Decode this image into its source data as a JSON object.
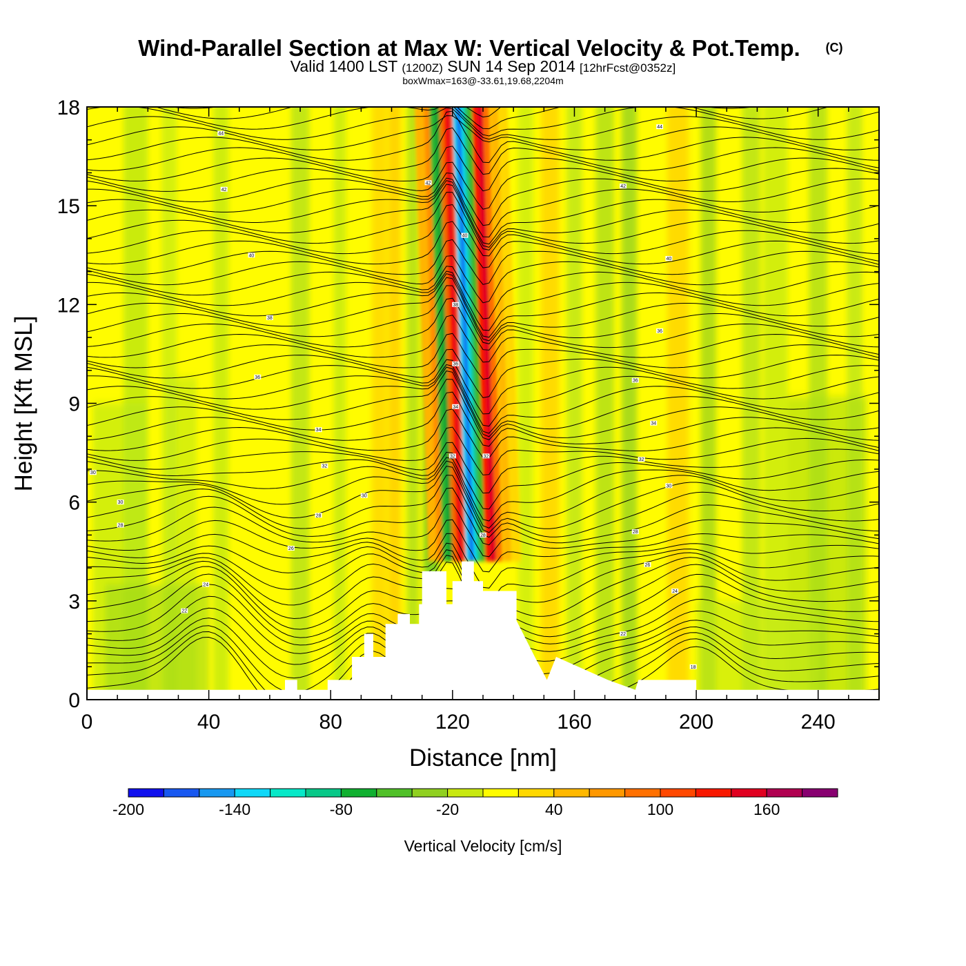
{
  "header": {
    "title": "Wind-Parallel Section at Max W: Vertical Velocity & Pot.Temp.",
    "title_mark": "(C)",
    "valid_prefix": "Valid 1400 LST",
    "valid_utc": "(1200Z)",
    "valid_date": "SUN 14 Sep 2014",
    "valid_fcst": "[12hrFcst@0352z]",
    "boxwmax": "boxWmax=163@-33.61,19.68,2204m"
  },
  "colorbar": {
    "title": "Vertical Velocity [cm/s]",
    "levels": [
      -200,
      -180,
      -160,
      -140,
      -120,
      -100,
      -80,
      -60,
      -40,
      -20,
      0,
      20,
      40,
      60,
      80,
      100,
      120,
      140,
      160,
      180,
      200
    ],
    "labels": [
      "-200",
      "-140",
      "-80",
      "-20",
      "40",
      "100",
      "160"
    ],
    "colors": [
      "#1010ee",
      "#1858f0",
      "#1898f0",
      "#10d8f8",
      "#08e8c8",
      "#08c888",
      "#10b030",
      "#50c028",
      "#90d020",
      "#c8e810",
      "#fffc00",
      "#ffd800",
      "#ffb800",
      "#ff9800",
      "#ff7000",
      "#ff4800",
      "#f81800",
      "#e00020",
      "#b00050",
      "#880070"
    ]
  },
  "chart_data": {
    "type": "heatmap",
    "title": "Wind-Parallel Section at Max W: Vertical Velocity & Pot.Temp.",
    "xlabel": "Distance [nm]",
    "ylabel": "Height [Kft MSL]",
    "xlim": [
      0,
      260
    ],
    "ylim": [
      0,
      18
    ],
    "xticks": [
      "0",
      "40",
      "80",
      "120",
      "160",
      "200",
      "240"
    ],
    "xtick_values": [
      0,
      40,
      80,
      120,
      160,
      200,
      240
    ],
    "yticks": [
      "0",
      "3",
      "6",
      "9",
      "12",
      "15",
      "18"
    ],
    "ytick_values": [
      0,
      3,
      6,
      9,
      12,
      15,
      18
    ],
    "updraft_core": {
      "x": 124,
      "w_max": 163
    },
    "terrain": [
      [
        0,
        0.3
      ],
      [
        65,
        0.3
      ],
      [
        65,
        0.6
      ],
      [
        69,
        0.6
      ],
      [
        69,
        0.3
      ],
      [
        79,
        0.3
      ],
      [
        79,
        0.6
      ],
      [
        87,
        0.6
      ],
      [
        87,
        1.3
      ],
      [
        91,
        1.3
      ],
      [
        91,
        2.0
      ],
      [
        94,
        2.0
      ],
      [
        94,
        1.3
      ],
      [
        98,
        1.3
      ],
      [
        98,
        2.3
      ],
      [
        102,
        2.3
      ],
      [
        102,
        2.6
      ],
      [
        106,
        2.6
      ],
      [
        106,
        2.3
      ],
      [
        109,
        2.3
      ],
      [
        109,
        2.9
      ],
      [
        110,
        2.9
      ],
      [
        110,
        3.9
      ],
      [
        118,
        3.9
      ],
      [
        118,
        2.9
      ],
      [
        120,
        2.9
      ],
      [
        120,
        3.6
      ],
      [
        123,
        3.6
      ],
      [
        123,
        4.2
      ],
      [
        127,
        4.2
      ],
      [
        127,
        3.6
      ],
      [
        130,
        3.6
      ],
      [
        130,
        3.3
      ],
      [
        141,
        3.3
      ],
      [
        141,
        2.4
      ],
      [
        147,
        1.3
      ],
      [
        151,
        0.6
      ],
      [
        154,
        1.3
      ],
      [
        171,
        0.6
      ],
      [
        180,
        0.3
      ],
      [
        181,
        0.6
      ],
      [
        200,
        0.6
      ],
      [
        200,
        0.3
      ],
      [
        260,
        0.3
      ]
    ],
    "theta_contours": [
      {
        "label": "44",
        "x": 44,
        "y": 17.2
      },
      {
        "label": "44",
        "x": 188,
        "y": 17.4
      },
      {
        "label": "42",
        "x": 45,
        "y": 15.5
      },
      {
        "label": "42",
        "x": 112,
        "y": 15.7
      },
      {
        "label": "42",
        "x": 176,
        "y": 15.6
      },
      {
        "label": "40",
        "x": 124,
        "y": 14.1
      },
      {
        "label": "40",
        "x": 54,
        "y": 13.5
      },
      {
        "label": "40",
        "x": 191,
        "y": 13.4
      },
      {
        "label": "38",
        "x": 121,
        "y": 12.0
      },
      {
        "label": "38",
        "x": 60,
        "y": 11.6
      },
      {
        "label": "36",
        "x": 188,
        "y": 11.2
      },
      {
        "label": "36",
        "x": 56,
        "y": 9.8
      },
      {
        "label": "36",
        "x": 121,
        "y": 10.2
      },
      {
        "label": "36",
        "x": 180,
        "y": 9.7
      },
      {
        "label": "34",
        "x": 121,
        "y": 8.9
      },
      {
        "label": "34",
        "x": 76,
        "y": 8.2
      },
      {
        "label": "34",
        "x": 186,
        "y": 8.4
      },
      {
        "label": "32",
        "x": 120,
        "y": 7.4
      },
      {
        "label": "32",
        "x": 131,
        "y": 7.4
      },
      {
        "label": "32",
        "x": 78,
        "y": 7.1
      },
      {
        "label": "32",
        "x": 182,
        "y": 7.3
      },
      {
        "label": "30",
        "x": 2,
        "y": 6.9
      },
      {
        "label": "30",
        "x": 91,
        "y": 6.2
      },
      {
        "label": "30",
        "x": 191,
        "y": 6.5
      },
      {
        "label": "30",
        "x": 11,
        "y": 6.0
      },
      {
        "label": "28",
        "x": 11,
        "y": 5.3
      },
      {
        "label": "28",
        "x": 76,
        "y": 5.6
      },
      {
        "label": "28",
        "x": 130,
        "y": 5.0
      },
      {
        "label": "28",
        "x": 180,
        "y": 5.1
      },
      {
        "label": "26",
        "x": 67,
        "y": 4.6
      },
      {
        "label": "26",
        "x": 184,
        "y": 4.1
      },
      {
        "label": "24",
        "x": 39,
        "y": 3.5
      },
      {
        "label": "24",
        "x": 193,
        "y": 3.3
      },
      {
        "label": "22",
        "x": 32,
        "y": 2.7
      },
      {
        "label": "22",
        "x": 176,
        "y": 2.0
      },
      {
        "label": "18",
        "x": 199,
        "y": 1.0
      }
    ]
  }
}
